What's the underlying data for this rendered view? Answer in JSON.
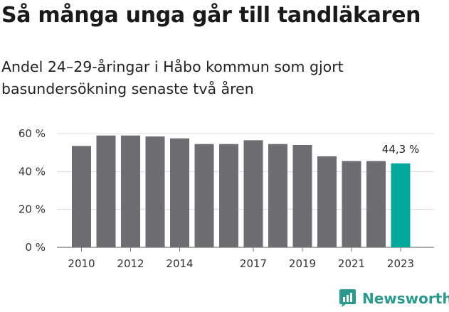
{
  "title": "Så många unga går till tandläkaren",
  "subtitle": "Andel 24–29-åringar i Håbo kommun som gjort basundersökning senaste två åren",
  "brand": {
    "name": "Newsworthy",
    "icon": "newsworthy-logo-icon",
    "color": "#2a9a8f"
  },
  "chart_data": {
    "type": "bar",
    "x": [
      2010,
      2011,
      2012,
      2013,
      2014,
      2015,
      2016,
      2017,
      2018,
      2019,
      2020,
      2021,
      2022,
      2023
    ],
    "values": [
      53.5,
      59,
      59,
      58.5,
      57.5,
      54.5,
      54.5,
      56.5,
      54.5,
      54,
      48,
      45.5,
      45.5,
      44.3
    ],
    "ylim": [
      0,
      60
    ],
    "yticks": [
      "0 %",
      "20 %",
      "40 %",
      "60 %"
    ],
    "ytick_values": [
      0,
      20,
      40,
      60
    ],
    "xticks": [
      "2010",
      "2012",
      "2014",
      "2017",
      "2019",
      "2021",
      "2023"
    ],
    "xtick_years": [
      2010,
      2012,
      2014,
      2017,
      2019,
      2021,
      2023
    ],
    "annotation": {
      "year": 2023,
      "text": "44,3 %"
    },
    "bar_color": "#6e6d72",
    "highlight_color": "#00a99a",
    "highlight_year": 2023,
    "grid": true
  }
}
